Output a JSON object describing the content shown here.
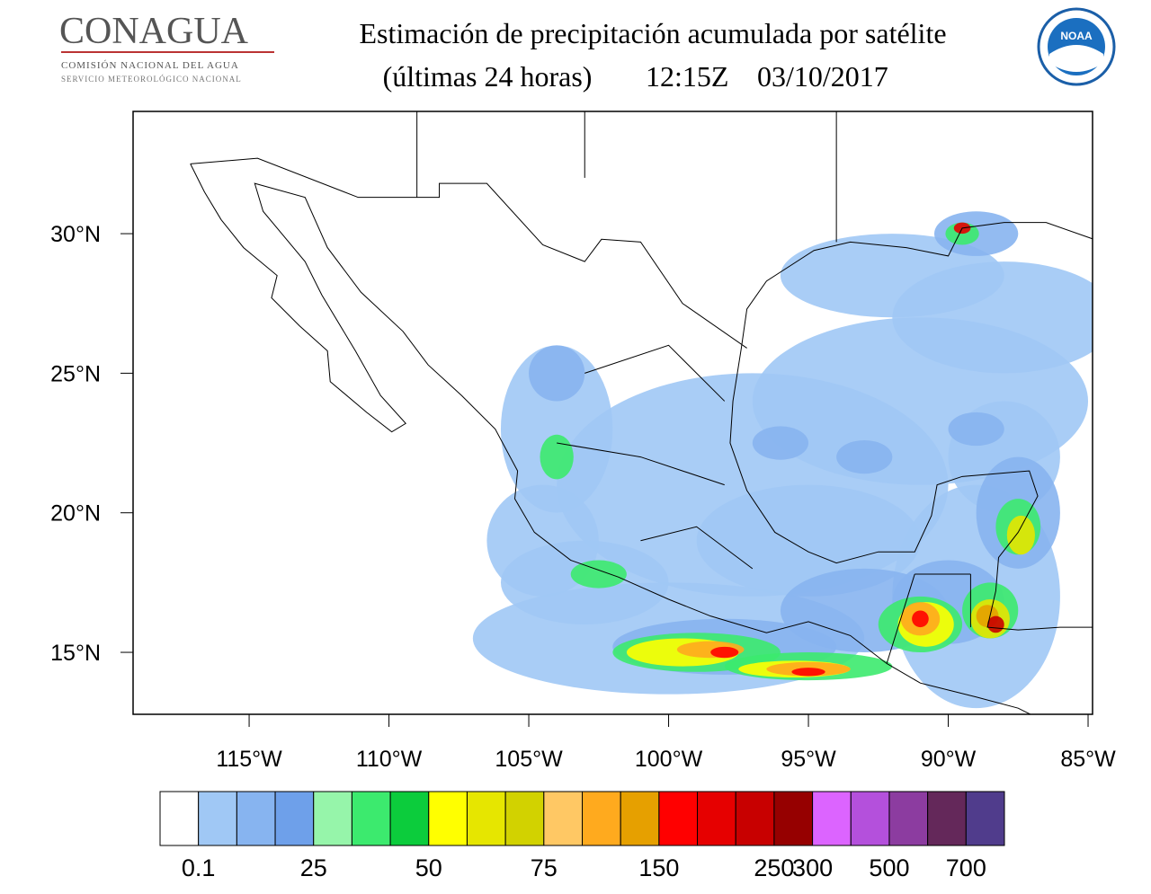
{
  "header": {
    "logo_title": "CONAGUA",
    "logo_line1": "COMISIÓN NACIONAL DEL AGUA",
    "logo_line2": "SERVICIO METEOROLÓGICO NACIONAL",
    "title": "Estimación de precipitación acumulada por satélite",
    "subtitle": "(últimas 24 horas)",
    "time": "12:15Z",
    "date": "03/10/2017",
    "noaa_logo": "NOAA"
  },
  "map": {
    "xlim": [
      -119.15,
      -84.84
    ],
    "ylim": [
      12.78,
      34.38
    ],
    "xticks": [
      {
        "value": -115,
        "label": "115°W"
      },
      {
        "value": -110,
        "label": "110°W"
      },
      {
        "value": -105,
        "label": "105°W"
      },
      {
        "value": -100,
        "label": "100°W"
      },
      {
        "value": -95,
        "label": "95°W"
      },
      {
        "value": -90,
        "label": "90°W"
      },
      {
        "value": -85,
        "label": "85°W"
      }
    ],
    "yticks": [
      {
        "value": 15,
        "label": "15°N"
      },
      {
        "value": 20,
        "label": "20°N"
      },
      {
        "value": 25,
        "label": "25°N"
      },
      {
        "value": 30,
        "label": "30°N"
      }
    ]
  },
  "colorbar": {
    "colors": [
      "#ffffff",
      "#a0c8f5",
      "#87b4f0",
      "#6ea0ea",
      "#96f5aa",
      "#3cea6e",
      "#0ccc3c",
      "#ffff00",
      "#e6e600",
      "#d2d200",
      "#ffc864",
      "#ffaa1e",
      "#e6a000",
      "#ff0000",
      "#e60000",
      "#c80000",
      "#960000",
      "#dc64ff",
      "#b450dc",
      "#8c3ca0",
      "#64285a",
      "#503c8c"
    ],
    "labels": [
      0.1,
      null,
      null,
      25,
      null,
      null,
      50,
      null,
      null,
      75,
      null,
      null,
      150,
      null,
      null,
      250,
      300,
      null,
      500,
      null,
      700
    ]
  }
}
